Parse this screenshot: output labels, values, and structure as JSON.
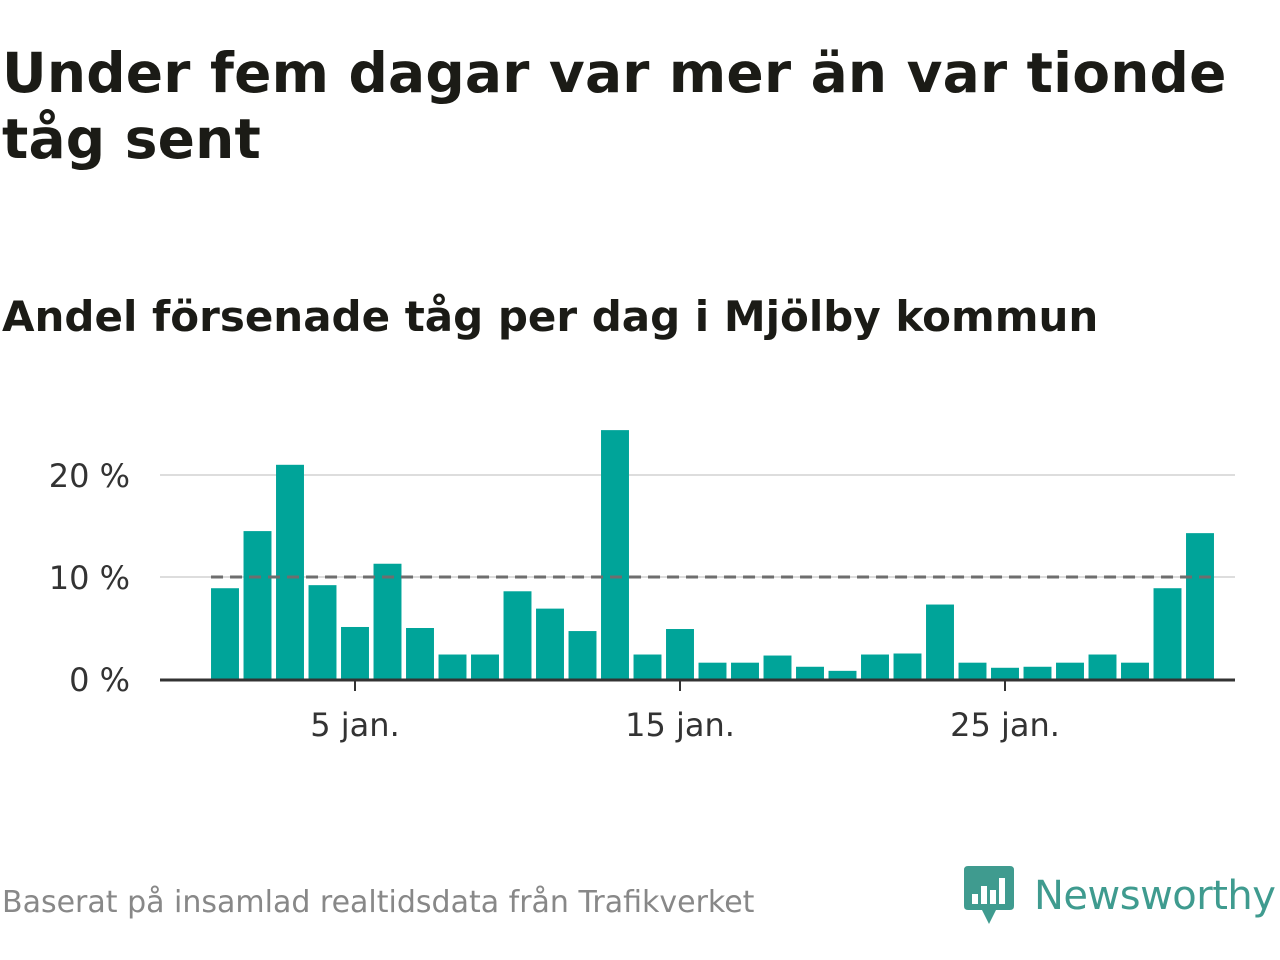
{
  "header": {
    "title": "Under fem dagar var mer än var tionde tåg sent",
    "subtitle": "Andel försenade tåg per dag i Mjölby kommun"
  },
  "footer": {
    "source": "Baserat på insamlad realtidsdata från Trafikverket",
    "brand": "Newsworthy",
    "brand_icon": "newsworthy-logo-icon"
  },
  "colors": {
    "bar": "#00a499",
    "reference_line": "#6e6e6e",
    "grid": "#dddddd",
    "axis": "#333333",
    "brand": "#3f9b8f"
  },
  "chart_data": {
    "type": "bar",
    "x_unit": "day of January",
    "x": [
      1,
      2,
      3,
      4,
      5,
      6,
      7,
      8,
      9,
      10,
      11,
      12,
      13,
      14,
      15,
      16,
      17,
      18,
      19,
      20,
      21,
      22,
      23,
      24,
      25,
      26,
      27,
      28,
      29,
      30,
      31
    ],
    "values": [
      8.9,
      14.5,
      21.0,
      9.2,
      5.1,
      11.3,
      5.0,
      2.4,
      2.4,
      8.6,
      6.9,
      4.7,
      24.4,
      2.4,
      4.9,
      1.6,
      1.6,
      2.3,
      1.2,
      0.8,
      2.4,
      2.5,
      7.3,
      1.6,
      1.1,
      1.2,
      1.6,
      2.4,
      1.6,
      8.9,
      14.3
    ],
    "ylim": [
      0,
      25
    ],
    "yticks": [
      0,
      10,
      20
    ],
    "ytick_labels": [
      "0 %",
      "10 %",
      "20 %"
    ],
    "xticks": [
      5,
      15,
      25
    ],
    "xtick_labels": [
      "5 jan.",
      "15 jan.",
      "25 jan."
    ],
    "reference_line": 10,
    "grid": true,
    "legend": "none"
  }
}
